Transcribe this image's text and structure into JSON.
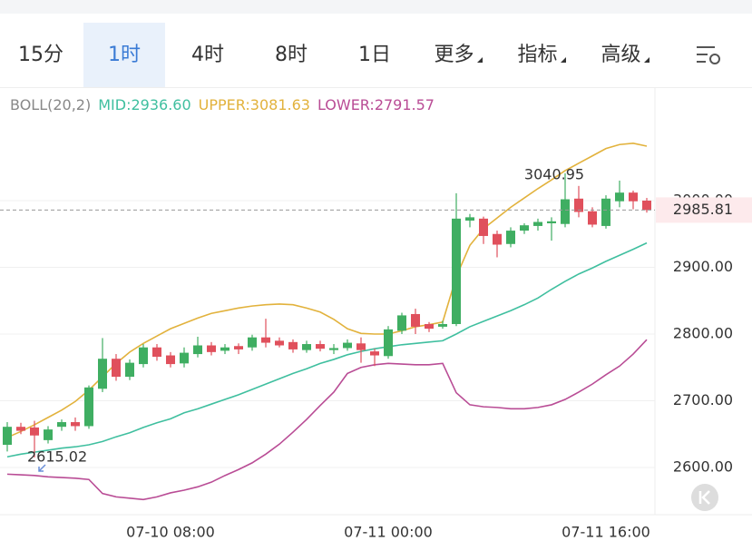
{
  "tabs": {
    "items": [
      "15分",
      "1时",
      "4时",
      "8时",
      "1日",
      "更多",
      "指标",
      "高级"
    ],
    "dropdowns": [
      5,
      6,
      7
    ],
    "selected": 1
  },
  "chart_data": {
    "type": "candlestick",
    "indicator": "BOLL(20,2)",
    "categories": [
      null,
      null,
      null,
      null,
      null,
      null,
      null,
      null,
      null,
      null,
      null,
      null,
      "07-10 08:00",
      null,
      null,
      null,
      null,
      null,
      null,
      null,
      null,
      null,
      null,
      null,
      null,
      null,
      null,
      null,
      "07-11 00:00",
      null,
      null,
      null,
      null,
      null,
      null,
      null,
      null,
      null,
      null,
      null,
      null,
      null,
      null,
      null,
      "07-11 16:00",
      null,
      null,
      null
    ],
    "open": [
      2634,
      2661,
      2660,
      2641,
      2661,
      2668,
      2662,
      2718,
      2763,
      2736,
      2755,
      2780,
      2768,
      2756,
      2770,
      2783,
      2775,
      2782,
      2780,
      2795,
      2790,
      2788,
      2776,
      2785,
      2776,
      2779,
      2786,
      2774,
      2767,
      2805,
      2830,
      2815,
      2811,
      2815,
      2970,
      2973,
      2950,
      2935,
      2955,
      2962,
      2966,
      2965,
      3003,
      2984,
      2962,
      2999,
      3012,
      3000
    ],
    "high": [
      2668,
      2667,
      2670,
      2662,
      2672,
      2675,
      2723,
      2794,
      2770,
      2762,
      2785,
      2785,
      2773,
      2780,
      2796,
      2788,
      2785,
      2786,
      2799,
      2823,
      2795,
      2792,
      2790,
      2790,
      2785,
      2792,
      2795,
      2778,
      2812,
      2832,
      2838,
      2818,
      2820,
      3011,
      2980,
      2976,
      2955,
      2960,
      2966,
      2973,
      2975,
      3040.95,
      3022,
      2990,
      3008,
      3030,
      3015,
      3004
    ],
    "low": [
      2624,
      2650,
      2615.02,
      2636,
      2655,
      2655,
      2658,
      2713,
      2730,
      2731,
      2750,
      2760,
      2750,
      2750,
      2765,
      2768,
      2770,
      2770,
      2775,
      2780,
      2780,
      2772,
      2772,
      2774,
      2770,
      2775,
      2757,
      2752,
      2763,
      2800,
      2800,
      2803,
      2808,
      2812,
      2960,
      2935,
      2915,
      2930,
      2950,
      2955,
      2940,
      2960,
      2975,
      2960,
      2958,
      2990,
      2987,
      2982
    ],
    "close": [
      2661,
      2655,
      2648,
      2657,
      2668,
      2662,
      2720,
      2763,
      2736,
      2757,
      2780,
      2766,
      2755,
      2772,
      2783,
      2773,
      2780,
      2777,
      2795,
      2787,
      2783,
      2777,
      2785,
      2778,
      2779,
      2787,
      2776,
      2768,
      2807,
      2828,
      2811,
      2808,
      2815,
      2973,
      2975,
      2947,
      2934,
      2955,
      2963,
      2968,
      2969,
      3002,
      2983,
      2964,
      3003,
      3012,
      2999,
      2985.81
    ],
    "up_color": "#3fae62",
    "down_color": "#e0505c",
    "series": [
      {
        "name": "MID:2936.60",
        "color": "#3fbf9f",
        "values": [
          2616,
          2620,
          2623,
          2626,
          2629,
          2631,
          2634,
          2639,
          2646,
          2652,
          2660,
          2667,
          2673,
          2682,
          2688,
          2695,
          2702,
          2709,
          2717,
          2725,
          2733,
          2741,
          2748,
          2756,
          2762,
          2769,
          2774,
          2778,
          2781,
          2784,
          2786,
          2788,
          2790,
          2800,
          2811,
          2819,
          2827,
          2835,
          2844,
          2854,
          2867,
          2879,
          2890,
          2899,
          2909,
          2918,
          2927,
          2936.6
        ]
      },
      {
        "name": "UPPER:3081.63",
        "color": "#e2b23c",
        "values": [
          2645,
          2654,
          2664,
          2675,
          2686,
          2699,
          2716,
          2736,
          2756,
          2773,
          2786,
          2797,
          2808,
          2816,
          2824,
          2831,
          2835,
          2839,
          2842,
          2844,
          2845,
          2844,
          2839,
          2833,
          2822,
          2808,
          2801,
          2800,
          2800,
          2805,
          2811,
          2814,
          2818,
          2886,
          2933,
          2958,
          2974,
          2990,
          3004,
          3018,
          3031,
          3045,
          3056,
          3067,
          3078,
          3084,
          3086,
          3081.63
        ]
      },
      {
        "name": "LOWER:2791.57",
        "color": "#b94c95",
        "values": [
          2590,
          2589,
          2588,
          2586,
          2585,
          2584,
          2582,
          2561,
          2556,
          2554,
          2552,
          2556,
          2562,
          2566,
          2571,
          2578,
          2588,
          2597,
          2607,
          2620,
          2635,
          2653,
          2672,
          2693,
          2713,
          2741,
          2750,
          2754,
          2756,
          2755,
          2754,
          2754,
          2756,
          2712,
          2694,
          2691,
          2690,
          2688,
          2688,
          2690,
          2694,
          2702,
          2713,
          2725,
          2739,
          2752,
          2770,
          2791.57
        ]
      }
    ],
    "ylim": [
      2532,
      3117
    ],
    "yticks": [
      {
        "value": 2600,
        "label": "2600.00"
      },
      {
        "value": 2700,
        "label": "2700.00"
      },
      {
        "value": 2800,
        "label": "2800.00"
      },
      {
        "value": 2900,
        "label": "2900.00"
      },
      {
        "value": 3000,
        "label": "3000.00"
      }
    ],
    "grid": true
  }
}
